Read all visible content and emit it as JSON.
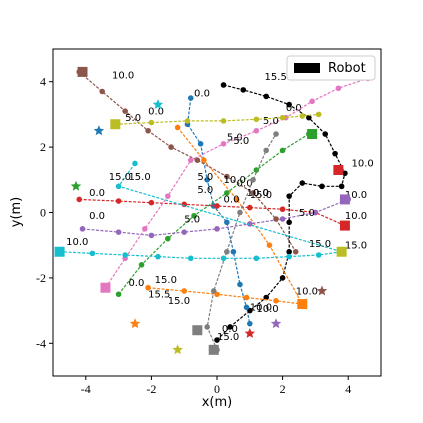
{
  "chart_data": {
    "type": "scatter",
    "xlabel": "x(m)",
    "ylabel": "y(m)",
    "xlim": [
      -5,
      5
    ],
    "ylim": [
      -5,
      5
    ],
    "xticks": [
      "-4",
      "-2",
      "0",
      "2",
      "4"
    ],
    "yticks": [
      "-4",
      "-2",
      "0",
      "2",
      "4"
    ],
    "grid": false,
    "legend": {
      "position": "top-right",
      "entries": [
        {
          "label": "Robot",
          "color": "#000000"
        }
      ]
    },
    "series": [
      {
        "color": "#000000",
        "points": [
          [
            0.2,
            3.9
          ],
          [
            0.8,
            3.75
          ],
          [
            1.5,
            3.55
          ],
          [
            2.2,
            3.3
          ],
          [
            2.8,
            2.9
          ],
          [
            3.3,
            2.4
          ],
          [
            3.6,
            1.8
          ],
          [
            3.9,
            1.2
          ],
          [
            3.8,
            0.8
          ],
          [
            3.2,
            0.8
          ],
          [
            2.6,
            0.9
          ],
          [
            2.2,
            0.5
          ],
          [
            2.2,
            -0.3
          ],
          [
            2.2,
            -1.2
          ],
          [
            2.0,
            -2.0
          ],
          [
            1.5,
            -2.6
          ],
          [
            1.0,
            -3.0
          ],
          [
            0.4,
            -3.5
          ],
          [
            0.0,
            -3.9
          ]
        ],
        "labels": [
          {
            "x": 1.45,
            "y": 4.05,
            "t": "15.5"
          },
          {
            "x": 2.1,
            "y": 3.1,
            "t": "0.0"
          },
          {
            "x": 4.1,
            "y": 1.4,
            "t": "10.0"
          },
          {
            "x": 1.0,
            "y": -3.0,
            "t": "10.0"
          },
          {
            "x": 0.15,
            "y": -3.65,
            "t": "0.0"
          }
        ]
      },
      {
        "color": "#1f77b4",
        "points": [
          [
            -0.8,
            3.5
          ],
          [
            -0.9,
            2.7
          ],
          [
            -0.5,
            2.1
          ],
          [
            -0.3,
            1.0
          ],
          [
            -0.1,
            0.2
          ],
          [
            0.3,
            -0.3
          ],
          [
            0.5,
            -1.2
          ],
          [
            0.7,
            -2.2
          ],
          [
            0.9,
            -2.9
          ],
          [
            1.0,
            -3.4
          ]
        ],
        "labels": [
          {
            "x": -0.7,
            "y": 3.55,
            "t": "0.0"
          },
          {
            "x": 0.3,
            "y": 2.2,
            "t": "5.0"
          },
          {
            "x": 1.2,
            "y": -3.05,
            "t": "10.0"
          }
        ]
      },
      {
        "color": "#ff7f0e",
        "points": [
          [
            -2.1,
            -2.3
          ],
          [
            -1.0,
            -2.4
          ],
          [
            0.0,
            -2.5
          ],
          [
            0.9,
            -2.6
          ],
          [
            1.8,
            -2.7
          ],
          [
            2.6,
            -2.8
          ],
          [
            1.6,
            -1.0
          ],
          [
            0.6,
            0.4
          ],
          [
            -0.4,
            1.6
          ],
          [
            -1.2,
            2.6
          ]
        ],
        "labels": [
          {
            "x": -1.9,
            "y": -2.15,
            "t": "15.0"
          },
          {
            "x": -2.1,
            "y": -2.6,
            "t": "15.5"
          },
          {
            "x": -1.5,
            "y": -2.8,
            "t": "15.0"
          },
          {
            "x": 2.4,
            "y": -2.5,
            "t": "10.0"
          }
        ]
      },
      {
        "color": "#2ca02c",
        "points": [
          [
            -3.0,
            -2.5
          ],
          [
            -2.3,
            -1.6
          ],
          [
            -1.5,
            -0.8
          ],
          [
            -0.7,
            -0.1
          ],
          [
            0.3,
            0.6
          ],
          [
            1.2,
            1.3
          ],
          [
            2.0,
            1.9
          ],
          [
            2.8,
            2.4
          ]
        ],
        "labels": [
          {
            "x": -2.7,
            "y": -2.25,
            "t": "0.0"
          },
          {
            "x": -0.6,
            "y": 0.6,
            "t": "5.0"
          },
          {
            "x": 0.5,
            "y": 2.1,
            "t": "5.0"
          }
        ]
      },
      {
        "color": "#d62728",
        "points": [
          [
            -4.2,
            0.4
          ],
          [
            -3.0,
            0.35
          ],
          [
            -2.0,
            0.3
          ],
          [
            -1.0,
            0.25
          ],
          [
            0.0,
            0.2
          ],
          [
            1.0,
            0.15
          ],
          [
            2.0,
            0.1
          ],
          [
            3.0,
            0.0
          ],
          [
            3.9,
            -0.4
          ]
        ],
        "labels": [
          {
            "x": -3.9,
            "y": 0.5,
            "t": "0.0"
          },
          {
            "x": 0.2,
            "y": 0.3,
            "t": "0.0"
          },
          {
            "x": 1.0,
            "y": 0.45,
            "t": "15.0"
          },
          {
            "x": 3.9,
            "y": -0.2,
            "t": "10.0"
          }
        ]
      },
      {
        "color": "#9467bd",
        "points": [
          [
            -4.1,
            -0.5
          ],
          [
            -3.0,
            -0.6
          ],
          [
            -2.0,
            -0.7
          ],
          [
            -1.0,
            -0.6
          ],
          [
            0.0,
            -0.5
          ],
          [
            1.0,
            -0.35
          ],
          [
            2.0,
            -0.2
          ],
          [
            3.0,
            0.0
          ],
          [
            4.0,
            0.4
          ]
        ],
        "labels": [
          {
            "x": -3.9,
            "y": -0.2,
            "t": "0.0"
          },
          {
            "x": -1.0,
            "y": -0.3,
            "t": "5.0"
          },
          {
            "x": 2.5,
            "y": -0.1,
            "t": "5.0"
          },
          {
            "x": 3.9,
            "y": 0.45,
            "t": "10.0"
          }
        ]
      },
      {
        "color": "#8c564b",
        "points": [
          [
            -4.2,
            4.3
          ],
          [
            -3.5,
            3.7
          ],
          [
            -2.8,
            3.1
          ],
          [
            -2.1,
            2.5
          ],
          [
            -1.4,
            2.0
          ],
          [
            -0.6,
            1.6
          ],
          [
            0.3,
            1.1
          ],
          [
            1.1,
            0.6
          ],
          [
            1.8,
            -0.2
          ],
          [
            2.4,
            -1.2
          ]
        ],
        "labels": [
          {
            "x": -3.2,
            "y": 4.1,
            "t": "10.0"
          },
          {
            "x": -0.6,
            "y": 1.0,
            "t": "5.0"
          },
          {
            "x": 0.6,
            "y": 0.8,
            "t": "0.0"
          }
        ]
      },
      {
        "color": "#e377c2",
        "points": [
          [
            -3.4,
            -2.3
          ],
          [
            -2.8,
            -1.4
          ],
          [
            -2.2,
            -0.5
          ],
          [
            -1.5,
            0.5
          ],
          [
            -0.8,
            1.6
          ],
          [
            0.2,
            2.1
          ],
          [
            1.2,
            2.5
          ],
          [
            2.1,
            2.9
          ],
          [
            2.9,
            3.4
          ],
          [
            3.7,
            3.8
          ],
          [
            4.6,
            4.1
          ]
        ],
        "labels": [
          {
            "x": 0.2,
            "y": 0.9,
            "t": "10.0"
          },
          {
            "x": 1.4,
            "y": 2.7,
            "t": "5.0"
          }
        ]
      },
      {
        "color": "#7f7f7f",
        "points": [
          [
            0.0,
            -4.2
          ],
          [
            -0.3,
            -3.5
          ],
          [
            -0.1,
            -2.4
          ],
          [
            0.3,
            -1.2
          ],
          [
            0.7,
            0.0
          ],
          [
            1.1,
            1.0
          ],
          [
            1.5,
            1.9
          ],
          [
            1.8,
            2.4
          ]
        ],
        "labels": [
          {
            "x": 0.0,
            "y": -3.9,
            "t": "15.0"
          },
          {
            "x": 1.1,
            "y": 0.5,
            "t": "0.0"
          }
        ]
      },
      {
        "color": "#bcbd22",
        "points": [
          [
            -3.1,
            2.7
          ],
          [
            -2.0,
            2.75
          ],
          [
            -0.9,
            2.8
          ],
          [
            0.2,
            2.8
          ],
          [
            1.2,
            2.85
          ],
          [
            2.0,
            2.9
          ],
          [
            2.6,
            2.95
          ],
          [
            3.1,
            3.0
          ]
        ],
        "labels": [
          {
            "x": -2.8,
            "y": 2.8,
            "t": "5.0"
          },
          {
            "x": -2.1,
            "y": 3.0,
            "t": "0.0"
          },
          {
            "x": 0.9,
            "y": 0.5,
            "t": "10.0"
          }
        ]
      },
      {
        "color": "#17becf",
        "points": [
          [
            -4.8,
            -1.2
          ],
          [
            -3.8,
            -1.25
          ],
          [
            -2.8,
            -1.3
          ],
          [
            -1.8,
            -1.35
          ],
          [
            -0.8,
            -1.4
          ],
          [
            0.2,
            -1.4
          ],
          [
            1.2,
            -1.4
          ],
          [
            2.2,
            -1.35
          ],
          [
            3.1,
            -1.3
          ],
          [
            3.8,
            -1.2
          ],
          [
            -3.0,
            0.8
          ],
          [
            -2.5,
            1.5
          ]
        ],
        "labels": [
          {
            "x": -4.6,
            "y": -1.0,
            "t": "10.0"
          },
          {
            "x": -3.3,
            "y": 1.0,
            "t": "15.0"
          },
          {
            "x": -2.7,
            "y": 1.0,
            "t": "15.0"
          },
          {
            "x": 2.8,
            "y": -1.05,
            "t": "15.0"
          },
          {
            "x": 3.9,
            "y": -1.1,
            "t": "15.0"
          }
        ]
      }
    ],
    "robot_starts": [
      {
        "x": -4.1,
        "y": 4.3,
        "color": "#8c564b"
      },
      {
        "x": -3.1,
        "y": 2.7,
        "color": "#bcbd22"
      },
      {
        "x": 2.9,
        "y": 2.4,
        "color": "#2ca02c"
      },
      {
        "x": 3.7,
        "y": 1.3,
        "color": "#d62728"
      },
      {
        "x": 3.9,
        "y": -0.4,
        "color": "#d62728"
      },
      {
        "x": 3.9,
        "y": 0.4,
        "color": "#9467bd"
      },
      {
        "x": -4.8,
        "y": -1.2,
        "color": "#17becf"
      },
      {
        "x": 3.8,
        "y": -1.2,
        "color": "#bcbd22"
      },
      {
        "x": -3.4,
        "y": -2.3,
        "color": "#e377c2"
      },
      {
        "x": 2.6,
        "y": -2.8,
        "color": "#ff7f0e"
      },
      {
        "x": -0.6,
        "y": -3.6,
        "color": "#7f7f7f"
      },
      {
        "x": -0.1,
        "y": -4.2,
        "color": "#7f7f7f"
      }
    ],
    "stars": [
      {
        "x": -1.8,
        "y": 3.3,
        "color": "#17becf"
      },
      {
        "x": -3.6,
        "y": 2.5,
        "color": "#1f77b4"
      },
      {
        "x": -4.3,
        "y": 0.8,
        "color": "#2ca02c"
      },
      {
        "x": 3.2,
        "y": -2.4,
        "color": "#8c564b"
      },
      {
        "x": -2.5,
        "y": -3.4,
        "color": "#ff7f0e"
      },
      {
        "x": 1.8,
        "y": -3.4,
        "color": "#9467bd"
      },
      {
        "x": 1.0,
        "y": -3.7,
        "color": "#d62728"
      },
      {
        "x": -1.2,
        "y": -4.2,
        "color": "#bcbd22"
      }
    ]
  }
}
